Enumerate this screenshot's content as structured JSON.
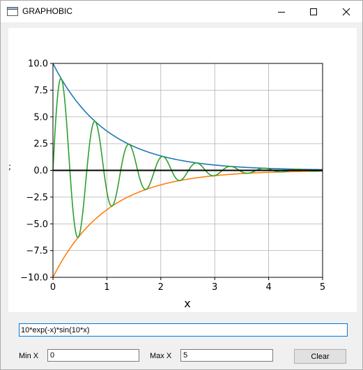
{
  "window": {
    "title": "GRAPHOBIC",
    "controls": {
      "minimize": "minimize-icon",
      "maximize": "maximize-icon",
      "close": "close-icon"
    }
  },
  "chart_data": {
    "type": "line",
    "xlabel": "x",
    "ylabel": ";",
    "xlim": [
      0,
      5
    ],
    "ylim": [
      -10,
      10
    ],
    "x_ticks": [
      "0",
      "1",
      "2",
      "3",
      "4",
      "5"
    ],
    "y_ticks": [
      "10.0",
      "7.5",
      "5.0",
      "2.5",
      "0.0",
      "−2.5",
      "−5.0",
      "−7.5",
      "−10.0"
    ],
    "y_tick_values": [
      10,
      7.5,
      5,
      2.5,
      0,
      -2.5,
      -5,
      -7.5,
      -10
    ],
    "grid": true,
    "series": [
      {
        "function": "10*exp(-x)",
        "color": "#1f77b4",
        "sample_x": [
          0,
          1,
          2,
          3,
          4,
          5
        ],
        "sample_y": [
          10,
          3.68,
          1.35,
          0.5,
          0.18,
          0.07
        ]
      },
      {
        "function": "-10*exp(-x)",
        "color": "#ff7f0e",
        "sample_x": [
          0,
          1,
          2,
          3,
          4,
          5
        ],
        "sample_y": [
          -10,
          -3.68,
          -1.35,
          -0.5,
          -0.18,
          -0.07
        ]
      },
      {
        "function": "10*exp(-x)*sin(10*x)",
        "color": "#2ca02c",
        "sample_x": [
          0,
          0.15,
          0.46,
          0.78,
          1.09,
          1.4
        ],
        "sample_y": [
          0,
          8.6,
          -6.3,
          4.6,
          -3.3,
          2.4
        ]
      },
      {
        "function": "0",
        "color": "#000000",
        "sample_x": [
          0,
          5
        ],
        "sample_y": [
          0,
          0
        ]
      }
    ]
  },
  "controls": {
    "expression": "10*exp(-x)*sin(10*x)",
    "min_x_label": "Min X",
    "min_x_value": "0",
    "max_x_label": "Max X",
    "max_x_value": "5",
    "clear_label": "Clear"
  }
}
